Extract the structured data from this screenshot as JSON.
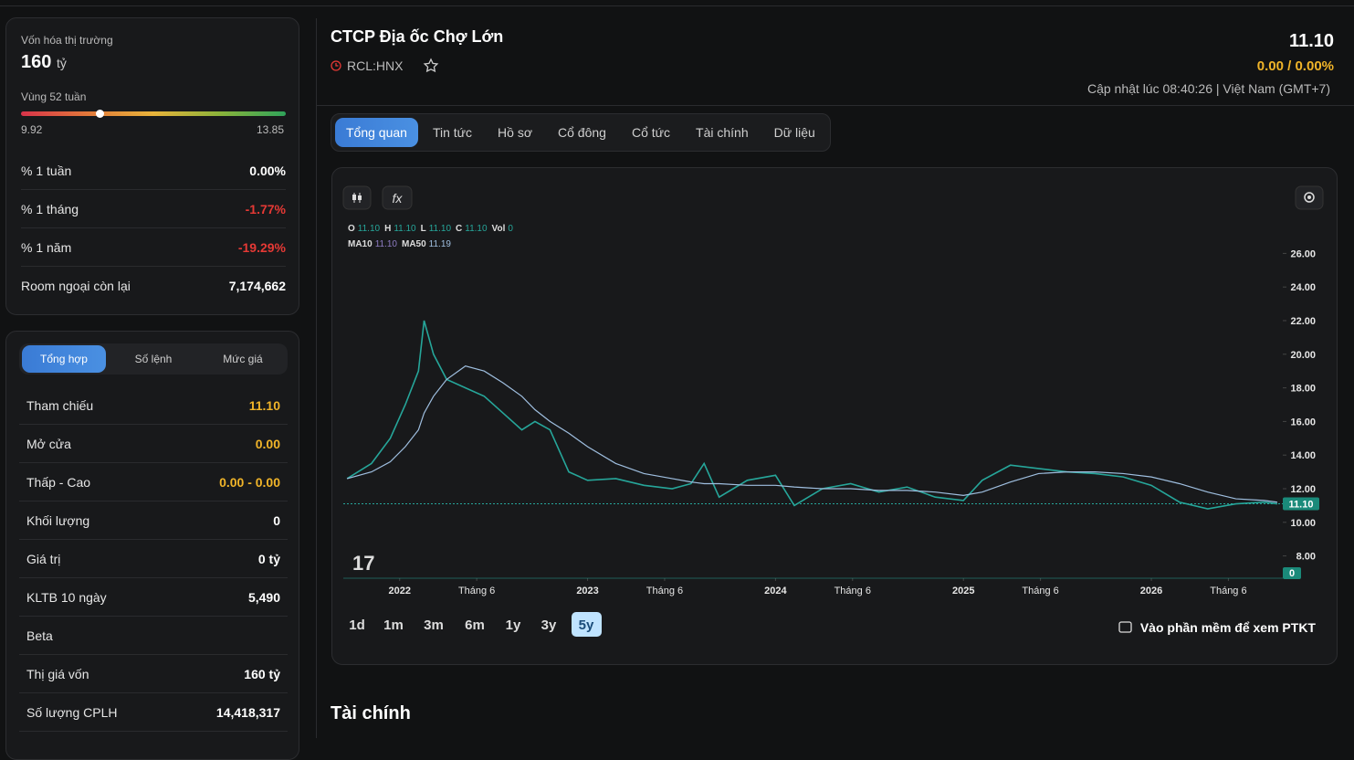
{
  "summary": {
    "cap_label": "Vốn hóa thị trường",
    "cap_value": "160",
    "cap_unit": "tỷ",
    "range_label": "Vùng 52 tuần",
    "range_low": "9.92",
    "range_high": "13.85",
    "rows": [
      {
        "label": "% 1 tuần",
        "value": "0.00%",
        "color": "#ffffff"
      },
      {
        "label": "% 1 tháng",
        "value": "-1.77%",
        "color": "#e53935"
      },
      {
        "label": "% 1 năm",
        "value": "-19.29%",
        "color": "#e53935"
      },
      {
        "label": "Room ngoại còn lại",
        "value": "7,174,662",
        "color": "#ffffff"
      }
    ]
  },
  "quote": {
    "tabs": [
      "Tổng hợp",
      "Số lệnh",
      "Mức giá"
    ],
    "rows": [
      {
        "label": "Tham chiếu",
        "value": "11.10",
        "color": "#f0b429"
      },
      {
        "label": "Mở cửa",
        "value": "0.00",
        "color": "#f0b429"
      },
      {
        "label": "Thấp - Cao",
        "value": "0.00 - 0.00",
        "color": "#f0b429"
      },
      {
        "label": "Khối lượng",
        "value": "0",
        "color": "#ffffff"
      },
      {
        "label": "Giá trị",
        "value": "0 tỷ",
        "color": "#ffffff"
      },
      {
        "label": "KLTB 10 ngày",
        "value": "5,490",
        "color": "#ffffff"
      },
      {
        "label": "Beta",
        "value": "",
        "color": "#ffffff"
      },
      {
        "label": "Thị giá vốn",
        "value": "160 tỷ",
        "color": "#ffffff"
      },
      {
        "label": "Số lượng CPLH",
        "value": "14,418,317",
        "color": "#ffffff"
      }
    ]
  },
  "header": {
    "company": "CTCP Địa ốc Chợ Lớn",
    "ticker": "RCL:HNX",
    "price": "11.10",
    "change": "0.00 / 0.00%",
    "updated": "Cập nhật lúc 08:40:26 | Việt Nam (GMT+7)"
  },
  "tabs": [
    "Tổng quan",
    "Tin tức",
    "Hồ sơ",
    "Cổ đông",
    "Cổ tức",
    "Tài chính",
    "Dữ liệu"
  ],
  "ranges": [
    "1d",
    "1m",
    "3m",
    "6m",
    "1y",
    "3y",
    "5y"
  ],
  "ptkt_link": "Vào phần mềm để xem PTKT",
  "section_title": "Tài chính",
  "chart_data": {
    "type": "line",
    "readout": [
      {
        "label": "O",
        "value": "11.10"
      },
      {
        "label": "H",
        "value": "11.10"
      },
      {
        "label": "L",
        "value": "11.10"
      },
      {
        "label": "Vol",
        "value": "0"
      },
      {
        "label": "MA10",
        "value": "11.10"
      }
    ],
    "x": [
      2021.72,
      2021.85,
      2021.95,
      2022.03,
      2022.1,
      2022.13,
      2022.18,
      2022.25,
      2022.35,
      2022.45,
      2022.55,
      2022.65,
      2022.72,
      2022.8,
      2022.9,
      2023.0,
      2023.15,
      2023.3,
      2023.45,
      2023.55,
      2023.62,
      2023.7,
      2023.85,
      2024.0,
      2024.1,
      2024.25,
      2024.4,
      2024.55,
      2024.7,
      2024.85,
      2025.0,
      2025.1,
      2025.25,
      2025.4,
      2025.55,
      2025.7,
      2025.85,
      2026.0,
      2026.15,
      2026.3,
      2026.45,
      2026.6,
      2026.67
    ],
    "series": [
      {
        "name": "C",
        "readout": "11.10",
        "color": "#26a69a",
        "values": [
          12.6,
          13.5,
          15,
          17,
          19,
          22,
          20,
          18.5,
          18,
          17.5,
          16.5,
          15.5,
          16,
          15.5,
          13,
          12.5,
          12.6,
          12.2,
          12.0,
          12.3,
          13.5,
          11.5,
          12.5,
          12.8,
          11.0,
          12,
          12.3,
          11.8,
          12.1,
          11.5,
          11.3,
          12.5,
          13.4,
          13.2,
          13.0,
          12.9,
          12.7,
          12.2,
          11.2,
          10.8,
          11.1,
          11.2,
          11.1
        ]
      },
      {
        "name": "MA50",
        "readout": "11.19",
        "color": "#9fbfe0",
        "values": [
          12.6,
          13.0,
          13.6,
          14.5,
          15.5,
          16.5,
          17.5,
          18.5,
          19.3,
          19.0,
          18.3,
          17.5,
          16.7,
          16.0,
          15.3,
          14.5,
          13.5,
          12.9,
          12.6,
          12.4,
          12.3,
          12.3,
          12.2,
          12.2,
          12.1,
          12.0,
          12.0,
          11.9,
          11.9,
          11.8,
          11.6,
          11.8,
          12.4,
          12.9,
          13.0,
          13.0,
          12.9,
          12.7,
          12.3,
          11.8,
          11.4,
          11.3,
          11.2
        ]
      }
    ],
    "last_price": {
      "value": 11.1,
      "label": "11.10"
    },
    "volume_label": "0",
    "xlim": [
      2021.7,
      2026.68
    ],
    "xticks": [
      {
        "value": 2022,
        "label": "2022"
      },
      {
        "value": 2022.41,
        "label": "Tháng 6"
      },
      {
        "value": 2023,
        "label": "2023"
      },
      {
        "value": 2023.41,
        "label": "Tháng 6"
      },
      {
        "value": 2024,
        "label": "2024"
      },
      {
        "value": 2024.41,
        "label": "Tháng 6"
      },
      {
        "value": 2025,
        "label": "2025"
      },
      {
        "value": 2025.41,
        "label": "Tháng 6"
      },
      {
        "value": 2026,
        "label": "2026"
      },
      {
        "value": 2026.41,
        "label": "Tháng 6"
      }
    ],
    "ylim": [
      7,
      27
    ],
    "yticks": [
      {
        "value": 8,
        "label": "8.00"
      },
      {
        "value": 10,
        "label": "10.00"
      },
      {
        "value": 12,
        "label": "12.00"
      },
      {
        "value": 14,
        "label": "14.00"
      },
      {
        "value": 16,
        "label": "16.00"
      },
      {
        "value": 18,
        "label": "18.00"
      },
      {
        "value": 20,
        "label": "20.00"
      },
      {
        "value": 22,
        "label": "22.00"
      },
      {
        "value": 24,
        "label": "24.00"
      },
      {
        "value": 26,
        "label": "26.00"
      }
    ]
  }
}
